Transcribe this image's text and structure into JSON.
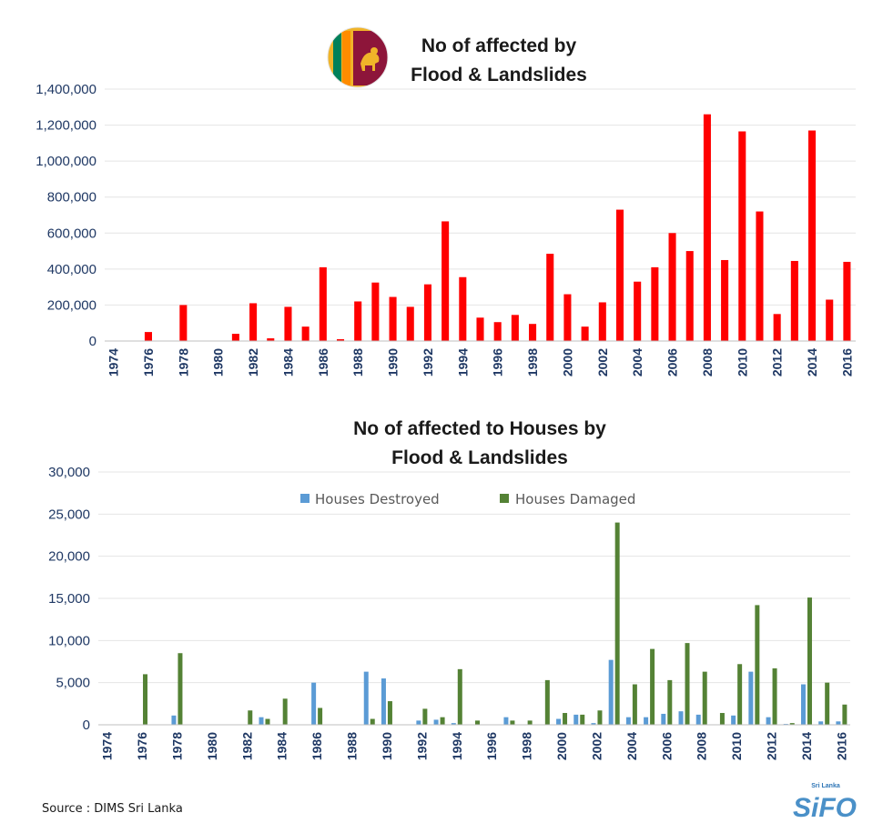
{
  "source_text": "Source : DIMS Sri Lanka",
  "logo": {
    "small_text": "Sri Lanka",
    "big_text": "SiFO",
    "icon": "sifo-logo"
  },
  "flag": {
    "icon": "sri-lanka-flag-icon"
  },
  "colors": {
    "affected": "#ff0000",
    "destroyed": "#5b9bd5",
    "damaged": "#548235",
    "text": "#1f3864"
  },
  "chart_data": [
    {
      "type": "bar",
      "title_lines": [
        "No of affected by",
        "Flood & Landslides"
      ],
      "ylim": [
        0,
        1400000
      ],
      "yticks": [
        "0",
        "200,000",
        "400,000",
        "600,000",
        "800,000",
        "1,000,000",
        "1,200,000",
        "1,400,000"
      ],
      "ytick_values": [
        0,
        200000,
        400000,
        600000,
        800000,
        1000000,
        1200000,
        1400000
      ],
      "x_tick_labels": [
        "1974",
        "1976",
        "1978",
        "1980",
        "1982",
        "1984",
        "1986",
        "1988",
        "1990",
        "1992",
        "1994",
        "1996",
        "1998",
        "2000",
        "2002",
        "2004",
        "2006",
        "2008",
        "2010",
        "2012",
        "2014",
        "2016"
      ],
      "categories": [
        1974,
        1975,
        1976,
        1977,
        1978,
        1979,
        1980,
        1981,
        1982,
        1983,
        1984,
        1985,
        1986,
        1987,
        1988,
        1989,
        1990,
        1991,
        1992,
        1993,
        1994,
        1995,
        1996,
        1997,
        1998,
        1999,
        2000,
        2001,
        2002,
        2003,
        2004,
        2005,
        2006,
        2007,
        2008,
        2009,
        2010,
        2011,
        2012,
        2013,
        2014,
        2015,
        2016
      ],
      "series": [
        {
          "values": [
            0,
            0,
            50000,
            0,
            200000,
            0,
            0,
            40000,
            210000,
            15000,
            190000,
            80000,
            410000,
            10000,
            220000,
            325000,
            245000,
            190000,
            315000,
            665000,
            355000,
            130000,
            105000,
            145000,
            95000,
            485000,
            260000,
            80000,
            215000,
            730000,
            330000,
            410000,
            600000,
            500000,
            1260000,
            450000,
            1165000,
            720000,
            150000,
            445000,
            1170000,
            230000,
            440000
          ]
        }
      ]
    },
    {
      "type": "bar",
      "title_lines": [
        "No of affected to Houses by",
        "Flood & Landslides"
      ],
      "ylim": [
        0,
        30000
      ],
      "yticks": [
        "0",
        "5,000",
        "10,000",
        "15,000",
        "20,000",
        "25,000",
        "30,000"
      ],
      "ytick_values": [
        0,
        5000,
        10000,
        15000,
        20000,
        25000,
        30000
      ],
      "x_tick_labels": [
        "1974",
        "1976",
        "1978",
        "1980",
        "1982",
        "1984",
        "1986",
        "1988",
        "1990",
        "1992",
        "1994",
        "1996",
        "1998",
        "2000",
        "2002",
        "2004",
        "2006",
        "2008",
        "2010",
        "2012",
        "2014",
        "2016"
      ],
      "categories": [
        1974,
        1975,
        1976,
        1977,
        1978,
        1979,
        1980,
        1981,
        1982,
        1983,
        1984,
        1985,
        1986,
        1987,
        1988,
        1989,
        1990,
        1991,
        1992,
        1993,
        1994,
        1995,
        1996,
        1997,
        1998,
        1999,
        2000,
        2001,
        2002,
        2003,
        2004,
        2005,
        2006,
        2007,
        2008,
        2009,
        2010,
        2011,
        2012,
        2013,
        2014,
        2015,
        2016
      ],
      "legend_position": "top-center",
      "series": [
        {
          "name": "Houses Destroyed",
          "values": [
            0,
            0,
            0,
            0,
            1100,
            0,
            0,
            0,
            0,
            900,
            0,
            0,
            5000,
            0,
            0,
            6300,
            5500,
            0,
            500,
            600,
            200,
            0,
            0,
            900,
            0,
            0,
            700,
            1200,
            200,
            7700,
            900,
            900,
            1300,
            1600,
            1200,
            0,
            1100,
            6300,
            900,
            100,
            4800,
            400,
            400
          ]
        },
        {
          "name": "Houses Damaged",
          "values": [
            0,
            0,
            6000,
            0,
            8500,
            0,
            0,
            0,
            1700,
            700,
            3100,
            0,
            2000,
            0,
            0,
            700,
            2800,
            0,
            1900,
            900,
            6600,
            500,
            0,
            500,
            500,
            5300,
            1400,
            1200,
            1700,
            24000,
            4800,
            9000,
            5300,
            9700,
            6300,
            1400,
            7200,
            14200,
            6700,
            200,
            15100,
            5000,
            2400
          ]
        }
      ]
    }
  ]
}
